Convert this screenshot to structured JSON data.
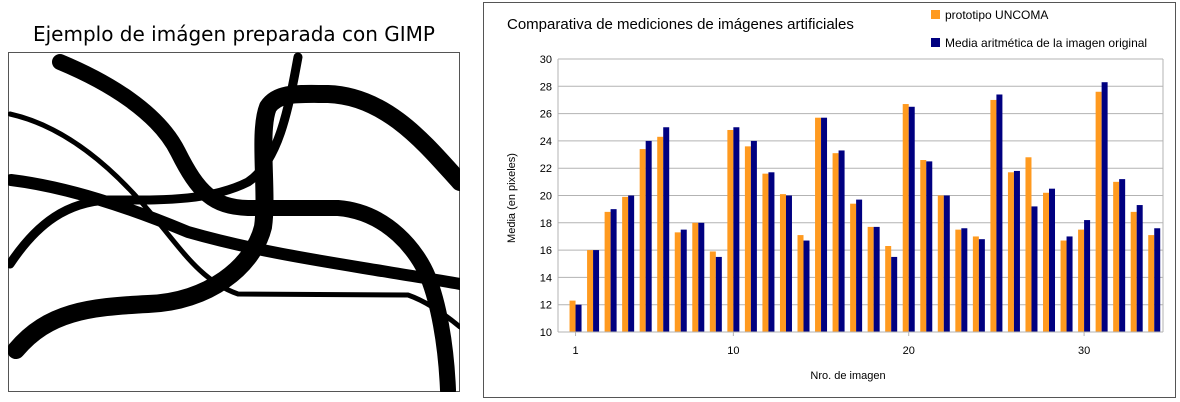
{
  "left_figure": {
    "title": "Ejemplo de imágen preparada con GIMP"
  },
  "chart_data": {
    "type": "bar",
    "title": "Comparativa de mediciones de imágenes artificiales",
    "xlabel": "Nro. de imagen",
    "ylabel": "Media (en pixeles)",
    "ylim": [
      10,
      30
    ],
    "yticks": [
      10,
      12,
      14,
      16,
      18,
      20,
      22,
      24,
      26,
      28,
      30
    ],
    "xticks": [
      1,
      10,
      20,
      30
    ],
    "grid": true,
    "legend_position": "top-right",
    "categories": [
      1,
      2,
      3,
      4,
      5,
      6,
      7,
      8,
      9,
      10,
      11,
      12,
      13,
      14,
      15,
      16,
      17,
      18,
      19,
      20,
      21,
      22,
      23,
      24,
      25,
      26,
      27,
      28,
      29,
      30,
      31,
      32,
      33,
      34
    ],
    "series": [
      {
        "name": "prototipo UNCOMA",
        "color": "#ff9a1f",
        "values": [
          12.3,
          16.0,
          18.8,
          19.9,
          23.4,
          24.3,
          17.3,
          18.0,
          15.9,
          24.8,
          23.6,
          21.6,
          20.1,
          17.1,
          25.7,
          23.1,
          19.4,
          17.7,
          16.3,
          26.7,
          22.6,
          20.0,
          17.5,
          17.0,
          27.0,
          21.7,
          22.8,
          20.2,
          16.7,
          17.5,
          27.6,
          21.0,
          18.8,
          17.1
        ]
      },
      {
        "name": "Media aritmética de la imagen original",
        "color": "#000080",
        "values": [
          12.0,
          16.0,
          19.0,
          20.0,
          24.0,
          25.0,
          17.5,
          18.0,
          15.5,
          25.0,
          24.0,
          21.7,
          20.0,
          16.7,
          25.7,
          23.3,
          19.7,
          17.7,
          15.5,
          26.5,
          22.5,
          20.0,
          17.6,
          16.8,
          27.4,
          21.8,
          19.2,
          20.5,
          17.0,
          18.2,
          28.3,
          21.2,
          19.3,
          17.6
        ]
      }
    ]
  }
}
